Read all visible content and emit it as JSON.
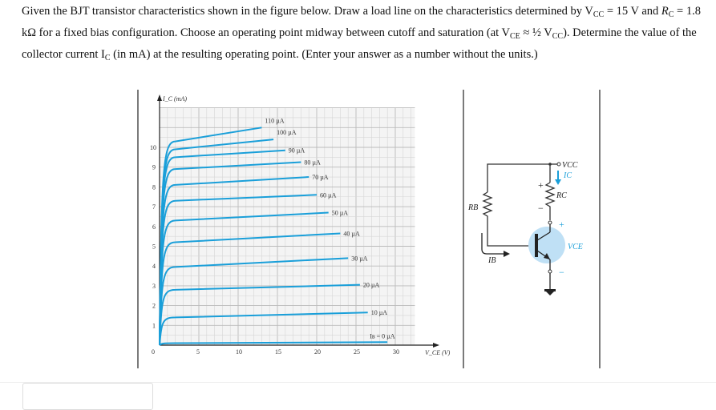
{
  "question": {
    "p1": "Given the BJT transistor characteristics shown in the figure below.  Draw a load line on the characteristics determined by V",
    "vcc_sub": "CC",
    "p2": " = 15 V and ",
    "rc_label": "R",
    "rc_sub": "C",
    "p3": " = 1.8 kΩ for a fixed bias configuration.  Choose an operating point midway between cutoff and saturation (at V",
    "vce_sub": "CE",
    "p4": " ≈ ½ V",
    "vcc_sub2": "CC",
    "p5": ").  Determine the value of the collector current I",
    "ic_sub": "C",
    "p6": " (in mA) at the resulting operating point.  (Enter your answer as a number without the units.)"
  },
  "chart_data": {
    "type": "line",
    "ylabel": "I_C (mA)",
    "xlabel": "V_CE (V)",
    "xlim": [
      0,
      32.5
    ],
    "ylim": [
      0,
      12
    ],
    "xticks": [
      "0",
      "5",
      "10",
      "15",
      "20",
      "25",
      "30"
    ],
    "yticks": [
      "1",
      "2",
      "3",
      "4",
      "5",
      "6",
      "7",
      "8",
      "9",
      "10"
    ],
    "grid": true,
    "color": "#1a9fd9",
    "series": [
      {
        "name": "I_B = 0 µA",
        "knee": 0.1,
        "end": [
          29,
          0.15
        ]
      },
      {
        "name": "10 µA",
        "knee": 1.4,
        "end": [
          26.5,
          1.65
        ]
      },
      {
        "name": "20 µA",
        "knee": 2.8,
        "end": [
          25.5,
          3.05
        ]
      },
      {
        "name": "30 µA",
        "knee": 3.95,
        "end": [
          24,
          4.4
        ]
      },
      {
        "name": "40 µA",
        "knee": 5.2,
        "end": [
          23,
          5.65
        ]
      },
      {
        "name": "50 µA",
        "knee": 6.3,
        "end": [
          21.5,
          6.7
        ]
      },
      {
        "name": "60 µA",
        "knee": 7.3,
        "end": [
          20,
          7.6
        ]
      },
      {
        "name": "70 µA",
        "knee": 8.1,
        "end": [
          19,
          8.5
        ]
      },
      {
        "name": "80 µA",
        "knee": 8.9,
        "end": [
          18,
          9.25
        ]
      },
      {
        "name": "90 µA",
        "knee": 9.5,
        "end": [
          16,
          9.85
        ]
      },
      {
        "name": "100 µA",
        "knee": 9.9,
        "end": [
          14.5,
          10.4
        ]
      },
      {
        "name": "110 µA",
        "knee": 10.3,
        "end": [
          13,
          11
        ]
      }
    ]
  },
  "circuit": {
    "vcc": "VCC",
    "ic": "IC",
    "rc": "RC",
    "rb": "RB",
    "ib": "IB",
    "vce": "VCE",
    "plus": "+",
    "minus": "−",
    "accent": "#1a9fd9"
  }
}
